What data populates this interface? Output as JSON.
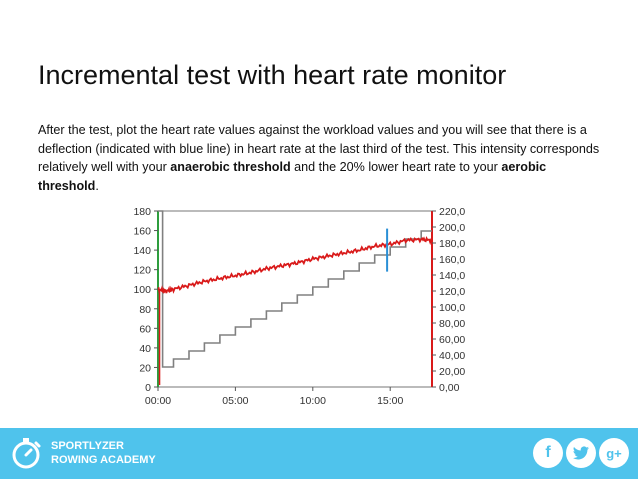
{
  "slide": {
    "title": "Incremental test with heart rate monitor",
    "paragraph_part1": "After the test, plot the heart rate values against the workload values and you will see that there is a deflection (indicated with blue line) in heart rate at the last third of the test. This intensity  corresponds relatively well with your ",
    "anaerobic_label": "anaerobic threshold",
    "paragraph_part2": " and the 20% lower heart rate to your ",
    "aerobic_label": "aerobic threshold",
    "paragraph_part3": "."
  },
  "footer": {
    "brand_line1": "SPORTLYZER",
    "brand_line2": "ROWING ACADEMY",
    "social": [
      {
        "icon": "facebook-icon",
        "glyph": "f"
      },
      {
        "icon": "twitter-icon",
        "glyph": "t"
      },
      {
        "icon": "google-plus-icon",
        "glyph": "g+"
      }
    ],
    "colors": {
      "bar": "#4fc3ec",
      "icon_bg": "#ffffff"
    }
  },
  "chart_data": {
    "type": "line",
    "x_ticks": [
      "00:00",
      "05:00",
      "10:00",
      "15:00"
    ],
    "x_range_minutes": [
      0,
      17.7
    ],
    "y_left": {
      "ticks": [
        0,
        20,
        40,
        60,
        80,
        100,
        120,
        140,
        160,
        180
      ],
      "range": [
        0,
        180
      ]
    },
    "y_right": {
      "ticks": [
        "0,00",
        "20,00",
        "40,00",
        "60,00",
        "80,00",
        "100,0",
        "120,0",
        "140,0",
        "160,0",
        "180,0",
        "200,0",
        "220,0"
      ],
      "range": [
        0,
        220
      ]
    },
    "series": [
      {
        "color": "#d91a1a",
        "axis": "left",
        "x": [
          0,
          0.5,
          1,
          2,
          3,
          4,
          5,
          6,
          7,
          8,
          9,
          10,
          11,
          12,
          13,
          14,
          15,
          16,
          17,
          17.7
        ],
        "y": [
          100,
          98,
          100,
          104,
          108,
          111,
          114,
          117,
          121,
          124,
          127,
          131,
          134,
          137,
          140,
          144,
          146,
          150,
          151,
          150
        ]
      },
      {
        "color": "#808080",
        "axis": "right",
        "step": true,
        "x": [
          0,
          0.3,
          0.3,
          1.0,
          1.0,
          2.0,
          2.0,
          3.0,
          3.0,
          4.0,
          4.0,
          5.0,
          5.0,
          6.0,
          6.0,
          7.0,
          7.0,
          8.0,
          8.0,
          9.0,
          9.0,
          10.0,
          10.0,
          11.0,
          11.0,
          12.0,
          12.0,
          13.0,
          13.0,
          14.0,
          14.0,
          15.0,
          15.0,
          16.0,
          16.0,
          17.0,
          17.0,
          17.7
        ],
        "y": [
          220,
          220,
          25,
          25,
          35,
          35,
          45,
          45,
          55,
          55,
          65,
          65,
          75,
          75,
          85,
          85,
          95,
          95,
          105,
          105,
          115,
          115,
          125,
          125,
          135,
          135,
          145,
          145,
          155,
          155,
          165,
          165,
          175,
          175,
          185,
          185,
          195,
          195
        ]
      }
    ],
    "marker": {
      "color": "#2a8fd6",
      "x": 14.8,
      "y_range_left": [
        118,
        162
      ]
    }
  }
}
